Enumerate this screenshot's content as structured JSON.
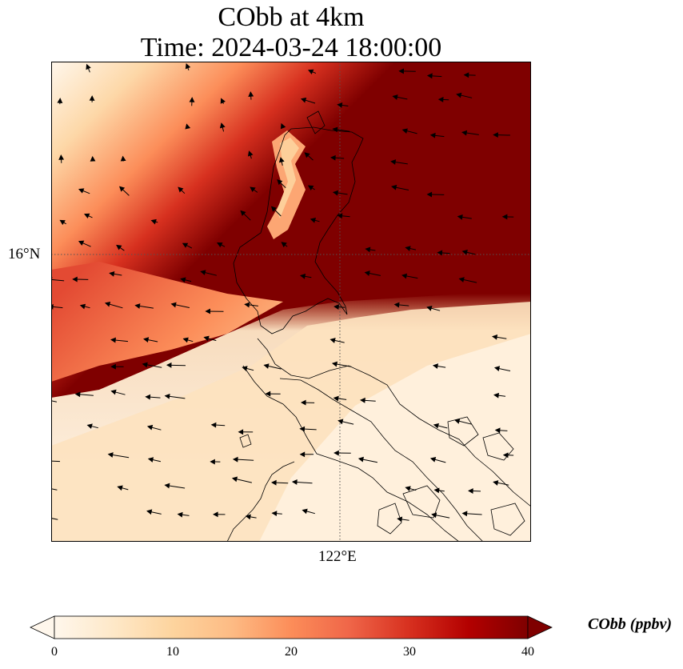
{
  "title": {
    "line1": "CObb at 4km",
    "line2": "Time: 2024-03-24 18:00:00"
  },
  "axes": {
    "lat_tick": "16°N",
    "lon_tick": "122°E",
    "gridlines": "dotted"
  },
  "colorbar": {
    "label": "CObb (ppbv)",
    "ticks": [
      "0",
      "10",
      "20",
      "30",
      "40"
    ],
    "range": [
      0,
      40
    ],
    "extend": "both",
    "colormap": "OrRd",
    "colors": [
      "#fff7ec",
      "#fee8c8",
      "#fdd49e",
      "#fdbb84",
      "#fc8d59",
      "#ef6548",
      "#d7301f",
      "#b30000",
      "#7f0000"
    ]
  },
  "map": {
    "field": "CObb",
    "level": "4km",
    "features": [
      "coastlines",
      "wind-vectors"
    ],
    "plume": "high CObb (>40 ppbv) over northern Luzon and to the northeast; diagonal gradient band from northwest; low values to the south"
  }
}
